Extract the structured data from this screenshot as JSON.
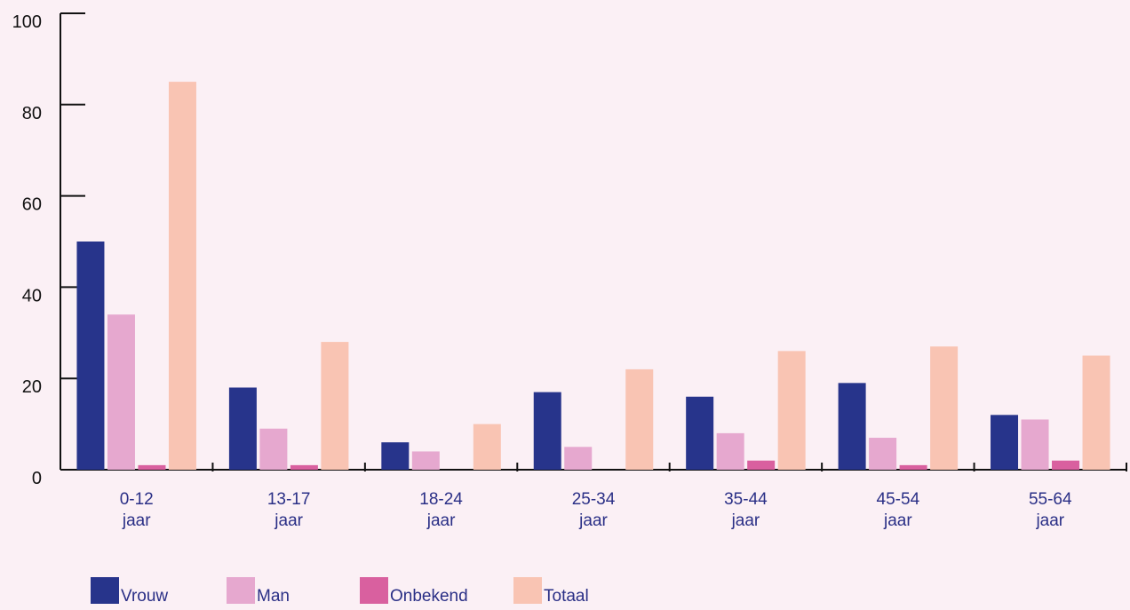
{
  "chart_data": {
    "type": "bar",
    "categories": [
      "0-12 jaar",
      "13-17 jaar",
      "18-24 jaar",
      "25-34 jaar",
      "35-44 jaar",
      "45-54 jaar",
      "55-64 jaar"
    ],
    "series": [
      {
        "name": "Vrouw",
        "color": "#27348b",
        "values": [
          50,
          18,
          6,
          17,
          16,
          19,
          12
        ]
      },
      {
        "name": "Man",
        "color": "#e6a8cf",
        "values": [
          34,
          9,
          4,
          5,
          8,
          7,
          11
        ]
      },
      {
        "name": "Onbekend",
        "color": "#d9609f",
        "values": [
          1,
          1,
          0,
          0,
          2,
          1,
          2
        ]
      },
      {
        "name": "Totaal",
        "color": "#f9c4b3",
        "values": [
          85,
          28,
          10,
          22,
          26,
          27,
          25
        ]
      }
    ],
    "ylim": [
      0,
      100
    ],
    "yticks": [
      0,
      20,
      40,
      60,
      80,
      100
    ],
    "grid": false,
    "legend": "bottom"
  }
}
